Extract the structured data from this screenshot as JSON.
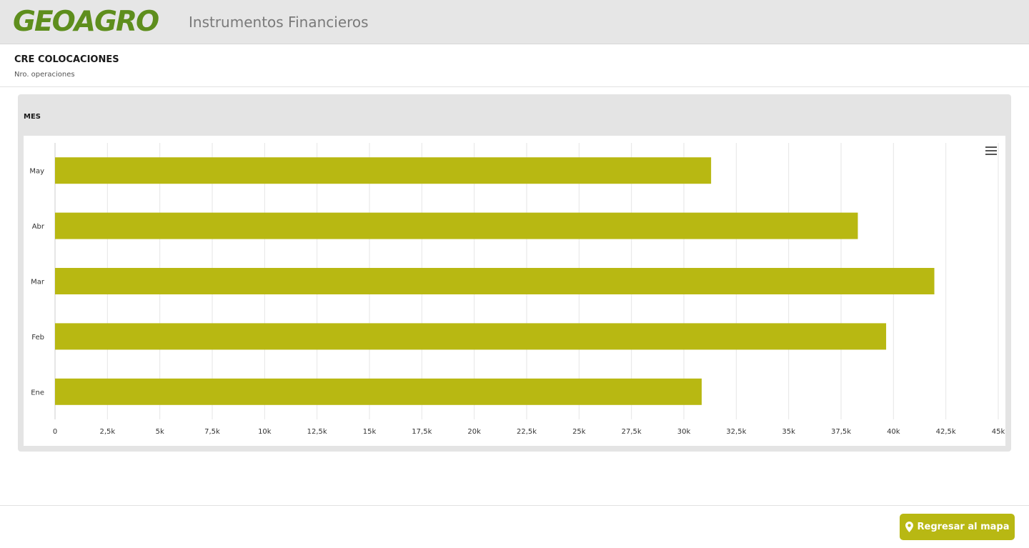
{
  "header": {
    "logo_text": "GEOAGRO",
    "app_title": "Instrumentos Financieros",
    "logo_color": "#5e8e1d"
  },
  "report": {
    "title": "CRE COLOCACIONES",
    "subtitle": "Nro. operaciones"
  },
  "panel": {
    "title": "MES",
    "menu_icon": "hamburger-menu-icon"
  },
  "footer": {
    "back_button_label": "Regresar al mapa",
    "back_button_icon": "map-pin-icon",
    "back_button_color": "#b8b813"
  },
  "chart_data": {
    "type": "bar",
    "orientation": "horizontal",
    "categories": [
      "May",
      "Abr",
      "Mar",
      "Feb",
      "Ene"
    ],
    "values": [
      31300,
      38300,
      41950,
      39650,
      30850
    ],
    "xlim": [
      0,
      45000
    ],
    "xticks": [
      0,
      2500,
      5000,
      7500,
      10000,
      12500,
      15000,
      17500,
      20000,
      22500,
      25000,
      27500,
      30000,
      32500,
      35000,
      37500,
      40000,
      42500,
      45000
    ],
    "xtick_labels": [
      "0",
      "2,5k",
      "5k",
      "7,5k",
      "10k",
      "12,5k",
      "15k",
      "17,5k",
      "20k",
      "22,5k",
      "25k",
      "27,5k",
      "30k",
      "32,5k",
      "35k",
      "37,5k",
      "40k",
      "42,5k",
      "45k"
    ],
    "grid": true,
    "legend": "none",
    "bar_color": "#b8b812"
  }
}
